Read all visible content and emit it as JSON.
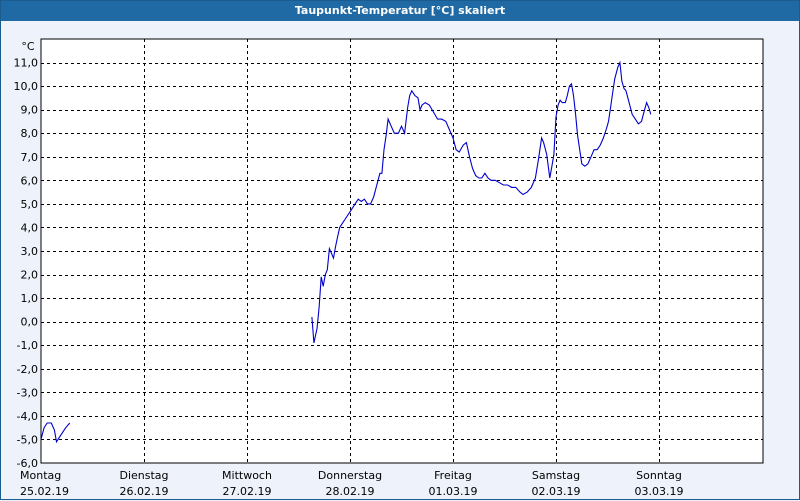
{
  "window": {
    "title": "Taupunkt-Temperatur [°C] skaliert"
  },
  "colors": {
    "title_bg": "#1f6aa5",
    "line": "#0000cc",
    "background": "#eef3fb",
    "grid": "#000000"
  },
  "chart_data": {
    "type": "line",
    "title": "Taupunkt-Temperatur [°C] skaliert",
    "ylabel": "°C",
    "ylim": [
      -6.0,
      12.0
    ],
    "yticks": [
      "11,0",
      "10,0",
      "9,0",
      "8,0",
      "7,0",
      "6,0",
      "5,0",
      "4,0",
      "3,0",
      "2,0",
      "1,0",
      "0,0",
      "-1,0",
      "-2,0",
      "-3,0",
      "-4,0",
      "-5,0",
      "-6,0"
    ],
    "xlim": [
      0,
      7
    ],
    "x_unit": "days after Montag 25.02.19 00:00",
    "xticks": [
      {
        "day": "Montag",
        "date": "25.02.19"
      },
      {
        "day": "Dienstag",
        "date": "26.02.19"
      },
      {
        "day": "Mittwoch",
        "date": "27.02.19"
      },
      {
        "day": "Donnerstag",
        "date": "28.02.19"
      },
      {
        "day": "Freitag",
        "date": "01.03.19"
      },
      {
        "day": "Samstag",
        "date": "02.03.19"
      },
      {
        "day": "Sonntag",
        "date": "03.03.19"
      }
    ],
    "grid": true,
    "series": [
      {
        "name": "",
        "segments": [
          [
            [
              0.0,
              -5.0
            ],
            [
              0.03,
              -4.5
            ],
            [
              0.06,
              -4.3
            ],
            [
              0.1,
              -4.3
            ],
            [
              0.13,
              -4.6
            ],
            [
              0.15,
              -5.1
            ],
            [
              0.18,
              -4.9
            ],
            [
              0.21,
              -4.7
            ],
            [
              0.24,
              -4.5
            ],
            [
              0.28,
              -4.3
            ]
          ],
          [
            [
              2.63,
              0.2
            ],
            [
              2.65,
              -0.9
            ],
            [
              2.68,
              -0.3
            ],
            [
              2.7,
              0.6
            ],
            [
              2.72,
              1.9
            ],
            [
              2.74,
              1.5
            ],
            [
              2.76,
              2.0
            ],
            [
              2.78,
              2.2
            ],
            [
              2.8,
              3.1
            ],
            [
              2.82,
              2.9
            ],
            [
              2.84,
              2.7
            ],
            [
              2.86,
              3.2
            ],
            [
              2.88,
              3.6
            ],
            [
              2.9,
              4.0
            ],
            [
              2.93,
              4.2
            ],
            [
              2.96,
              4.4
            ],
            [
              2.99,
              4.6
            ],
            [
              3.02,
              4.8
            ],
            [
              3.05,
              5.0
            ],
            [
              3.08,
              5.2
            ],
            [
              3.11,
              5.1
            ],
            [
              3.14,
              5.2
            ],
            [
              3.17,
              5.0
            ],
            [
              3.2,
              5.0
            ],
            [
              3.23,
              5.3
            ],
            [
              3.26,
              5.8
            ],
            [
              3.29,
              6.3
            ],
            [
              3.31,
              6.3
            ],
            [
              3.33,
              7.3
            ],
            [
              3.35,
              7.9
            ],
            [
              3.37,
              8.6
            ],
            [
              3.4,
              8.3
            ],
            [
              3.43,
              8.0
            ],
            [
              3.47,
              8.0
            ],
            [
              3.5,
              8.3
            ],
            [
              3.53,
              8.0
            ],
            [
              3.56,
              9.1
            ],
            [
              3.58,
              9.6
            ],
            [
              3.6,
              9.8
            ],
            [
              3.63,
              9.6
            ],
            [
              3.66,
              9.5
            ],
            [
              3.68,
              9.0
            ],
            [
              3.7,
              9.2
            ],
            [
              3.73,
              9.3
            ],
            [
              3.77,
              9.2
            ],
            [
              3.81,
              8.9
            ],
            [
              3.85,
              8.6
            ],
            [
              3.89,
              8.6
            ],
            [
              3.93,
              8.5
            ],
            [
              3.96,
              8.2
            ],
            [
              4.0,
              7.8
            ],
            [
              4.03,
              7.3
            ],
            [
              4.06,
              7.2
            ],
            [
              4.1,
              7.5
            ],
            [
              4.13,
              7.6
            ],
            [
              4.16,
              7.0
            ],
            [
              4.19,
              6.5
            ],
            [
              4.22,
              6.2
            ],
            [
              4.25,
              6.1
            ],
            [
              4.28,
              6.1
            ],
            [
              4.31,
              6.3
            ],
            [
              4.34,
              6.1
            ],
            [
              4.37,
              6.0
            ],
            [
              4.41,
              6.0
            ],
            [
              4.45,
              5.9
            ],
            [
              4.49,
              5.8
            ],
            [
              4.53,
              5.8
            ],
            [
              4.57,
              5.7
            ],
            [
              4.61,
              5.7
            ],
            [
              4.65,
              5.5
            ],
            [
              4.68,
              5.4
            ],
            [
              4.72,
              5.5
            ],
            [
              4.76,
              5.7
            ],
            [
              4.8,
              6.1
            ],
            [
              4.83,
              6.9
            ],
            [
              4.86,
              7.8
            ],
            [
              4.88,
              7.6
            ],
            [
              4.91,
              7.1
            ],
            [
              4.94,
              6.1
            ],
            [
              4.96,
              6.6
            ],
            [
              4.98,
              7.1
            ],
            [
              5.0,
              8.7
            ],
            [
              5.02,
              9.2
            ],
            [
              5.04,
              9.4
            ],
            [
              5.06,
              9.3
            ],
            [
              5.09,
              9.3
            ],
            [
              5.11,
              9.6
            ],
            [
              5.13,
              10.0
            ],
            [
              5.15,
              10.1
            ],
            [
              5.17,
              9.6
            ],
            [
              5.19,
              8.8
            ],
            [
              5.21,
              7.9
            ],
            [
              5.23,
              7.3
            ],
            [
              5.25,
              6.7
            ],
            [
              5.28,
              6.6
            ],
            [
              5.31,
              6.7
            ],
            [
              5.34,
              7.0
            ],
            [
              5.37,
              7.3
            ],
            [
              5.4,
              7.3
            ],
            [
              5.43,
              7.5
            ],
            [
              5.46,
              7.8
            ],
            [
              5.49,
              8.2
            ],
            [
              5.51,
              8.5
            ],
            [
              5.53,
              9.1
            ],
            [
              5.55,
              9.7
            ],
            [
              5.57,
              10.3
            ],
            [
              5.6,
              10.8
            ],
            [
              5.62,
              11.0
            ],
            [
              5.64,
              10.2
            ],
            [
              5.66,
              9.9
            ],
            [
              5.68,
              9.8
            ],
            [
              5.71,
              9.3
            ],
            [
              5.74,
              8.8
            ],
            [
              5.77,
              8.6
            ],
            [
              5.8,
              8.4
            ],
            [
              5.83,
              8.5
            ],
            [
              5.86,
              9.0
            ],
            [
              5.88,
              9.3
            ],
            [
              5.9,
              9.1
            ],
            [
              5.92,
              8.8
            ]
          ]
        ]
      }
    ]
  }
}
